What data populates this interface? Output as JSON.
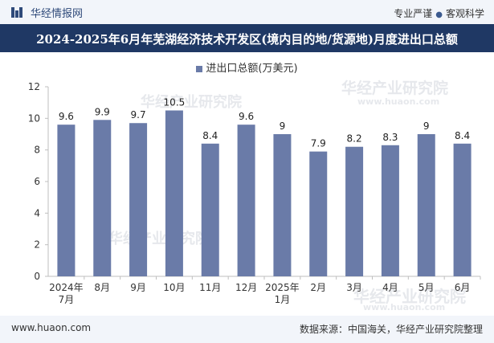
{
  "header": {
    "brand": "华经情报网",
    "tag1": "专业严谨",
    "tag_separator": "●",
    "tag2": "客观科学"
  },
  "title": "2024-2025年6月年芜湖经济技术开发区(境内目的地/货源地)月度进出口总额",
  "footer": {
    "site": "www.huaon.com",
    "source": "数据来源：中国海关，华经产业研究院整理"
  },
  "watermarks": {
    "name": "华经产业研究院",
    "url": "www.huaon.com"
  },
  "colors": {
    "bar": "#6a7ba8",
    "title_bg": "#1f3864",
    "header_bg": "#f2f5fa"
  },
  "chart_data": {
    "type": "bar",
    "legend": "进出口总额(万美元)",
    "categories": [
      "2024年7月",
      "8月",
      "9月",
      "10月",
      "11月",
      "12月",
      "2025年1月",
      "2月",
      "3月",
      "4月",
      "5月",
      "6月"
    ],
    "category_lines": [
      [
        "2024年",
        "7月"
      ],
      [
        "8月"
      ],
      [
        "9月"
      ],
      [
        "10月"
      ],
      [
        "11月"
      ],
      [
        "12月"
      ],
      [
        "2025年",
        "1月"
      ],
      [
        "2月"
      ],
      [
        "3月"
      ],
      [
        "4月"
      ],
      [
        "5月"
      ],
      [
        "6月"
      ]
    ],
    "series": [
      {
        "name": "进出口总额(万美元)",
        "values": [
          9.6,
          9.9,
          9.7,
          10.5,
          8.4,
          9.6,
          9,
          7.9,
          8.2,
          8.3,
          9,
          8.4
        ]
      }
    ],
    "ylim": [
      0,
      12
    ],
    "yticks": [
      0,
      2,
      4,
      6,
      8,
      10,
      12
    ],
    "grid": false
  }
}
